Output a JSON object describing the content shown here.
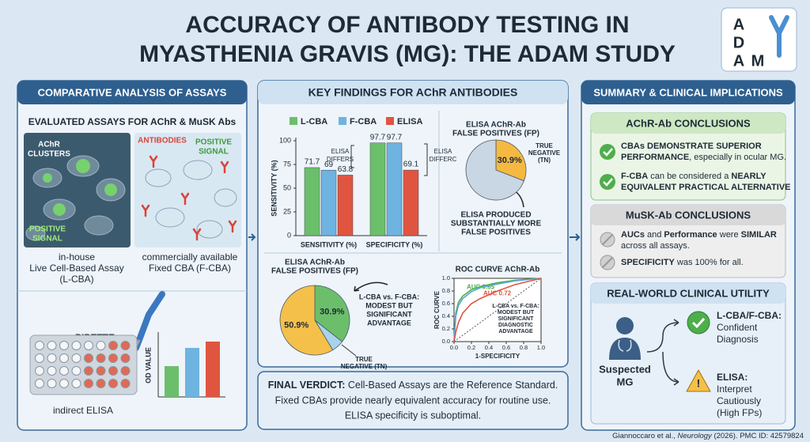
{
  "header": {
    "title": [
      "ACCURACY OF ANTIBODY TESTING IN",
      "MYASTHENIA GRAVIS (MG): THE ADAM STUDY"
    ],
    "logo": [
      "A",
      "D",
      "A",
      "M"
    ]
  },
  "assays": {
    "title": "COMPARATIVE ANALYSIS OF ASSAYS",
    "subtitle": "EVALUATED ASSAYS FOR AChR & MuSK Abs",
    "live": {
      "clusters": [
        "AChR",
        "CLUSTERS"
      ],
      "signal": [
        "POSITIVE",
        "SIGNAL"
      ],
      "caption": [
        "in-house",
        "Live Cell-Based Assay",
        "(L-CBA)"
      ]
    },
    "fixed": {
      "antibodies": "ANTIBODIES",
      "signal": [
        "POSITIVE",
        "SIGNAL"
      ],
      "caption": [
        "commercially available",
        "Fixed CBA (F-CBA)"
      ]
    },
    "elisa": {
      "pipette": "PIPETTE",
      "axis": "OD VALUE",
      "caption": "indirect ELISA"
    }
  },
  "findings": {
    "title": "KEY FINDINGS FOR AChR ANTIBODIES",
    "verdict": {
      "lead": "FINAL VERDICT:",
      "lines": [
        "Cell-Based Assays are the Reference Standard.",
        "Fixed CBAs provide nearly equivalent accuracy for routine use.",
        "ELISA specificity is suboptimal."
      ]
    }
  },
  "chart_data": [
    {
      "type": "bar",
      "ylabel": "SENSITIVITY (%)",
      "categories": [
        "SENSITIVITY (%)",
        "SPECIFICITY (%)"
      ],
      "series": [
        {
          "name": "L-CBA",
          "color": "#6cbf6a",
          "values": [
            71.7,
            97.7
          ]
        },
        {
          "name": "F-CBA",
          "color": "#6fb3e0",
          "values": [
            69,
            97.7
          ]
        },
        {
          "name": "ELISA",
          "color": "#e0553f",
          "values": [
            63.8,
            69.1
          ]
        }
      ],
      "ylim": [
        0,
        100
      ],
      "yticks": [
        0,
        25,
        50,
        75,
        100
      ],
      "annotations": [
        [
          "ELISA",
          "DIFFERS"
        ],
        [
          "ELISA",
          "DIFFERC"
        ]
      ]
    },
    {
      "type": "pie",
      "title": [
        "ELISA AChR-Ab",
        "FALSE POSITIVES (FP)"
      ],
      "categories": [
        null,
        "TRUE NEGATIVE (TN)"
      ],
      "values": [
        30.9,
        69.1
      ],
      "value_labels": [
        "30.9%",
        null
      ],
      "colors": [
        "#f5b942",
        "#c9d6e3"
      ],
      "annotation": [
        "ELISA PRODUCED",
        "SUBSTANTIALLY MORE",
        "FALSE POSITIVES"
      ]
    },
    {
      "type": "pie",
      "title": [
        "ELISA AChR-Ab",
        "FALSE POSITIVES (FP)"
      ],
      "categories": [
        null,
        "TRUE NEGATIVE (TN)",
        null
      ],
      "values": [
        30.9,
        5,
        50.9
      ],
      "value_labels": [
        "30.9%",
        null,
        "50.9%"
      ],
      "colors": [
        "#6cbf6a",
        "#a8d4ea",
        "#f5c04a"
      ],
      "annotation": [
        "L-CBA vs. F-CBA:",
        "MODEST BUT",
        "SIGNIFICANT",
        "ADVANTAGE"
      ]
    },
    {
      "type": "line",
      "title": "ROC CURVE AChR-Ab",
      "xlabel": "1-SPECIFICITY",
      "ylabel": "ROC CURVE",
      "x": [
        0,
        0.02,
        0.05,
        0.1,
        0.2,
        0.3,
        0.5,
        0.7,
        1
      ],
      "series": [
        {
          "name": "AUC 0.85",
          "color": "#4fae4c",
          "values": [
            0,
            0.45,
            0.62,
            0.72,
            0.82,
            0.87,
            0.93,
            0.97,
            1
          ]
        },
        {
          "color": "#5aa6d8",
          "values": [
            0,
            0.4,
            0.57,
            0.68,
            0.79,
            0.85,
            0.91,
            0.96,
            1
          ]
        },
        {
          "name": "AUC 0.72",
          "color": "#e0553f",
          "values": [
            0,
            0.15,
            0.3,
            0.45,
            0.6,
            0.68,
            0.8,
            0.9,
            1
          ]
        }
      ],
      "xlim": [
        0,
        1
      ],
      "ylim": [
        0,
        1
      ],
      "xticks": [
        {
          "value": 0,
          "label": "0.0"
        },
        0.2,
        0.4,
        0.6,
        0.8,
        {
          "value": 1,
          "label": "1.0"
        }
      ],
      "yticks": [
        {
          "value": 0,
          "label": "0.0"
        },
        0.2,
        0.4,
        0.6,
        0.8,
        {
          "value": 1,
          "label": "1.0"
        }
      ],
      "annotation": [
        "L-CBA vs. F-CBA:",
        "MODEST BUT",
        "SIGNIFICANT",
        "DIAGNOSTIC",
        "ADVANTAGE"
      ]
    }
  ],
  "summary": {
    "title": "SUMMARY & CLINICAL IMPLICATIONS",
    "achr": {
      "title": "AChR-Ab CONCLUSIONS",
      "items": [
        [
          "CBAs DEMONSTRATE SUPERIOR",
          "PERFORMANCE",
          ", especially in ocular MG."
        ],
        [
          "F-CBA",
          " can be considered a ",
          "NEARLY",
          "EQUIVALENT PRACTICAL ALTERNATIVE"
        ]
      ]
    },
    "musk": {
      "title": "MuSK-Ab CONCLUSIONS",
      "items": [
        [
          "AUCs",
          " and ",
          "Performance",
          " were ",
          "SIMILAR",
          "across all assays."
        ],
        [
          "SPECIFICITY",
          " was 100% for all."
        ]
      ]
    },
    "utility": {
      "title": "REAL-WORLD CLINICAL UTILITY",
      "patient": [
        "Suspected",
        "MG"
      ],
      "good": [
        "L-CBA/F-CBA:",
        "Confident",
        "Diagnosis"
      ],
      "caution": [
        "ELISA:",
        "Interpret",
        "Cautiously",
        "(High FPs)"
      ]
    }
  },
  "footer": [
    "Giannoccaro et al., ",
    "Neurology",
    " (2026). PMC ID: 42579824"
  ]
}
